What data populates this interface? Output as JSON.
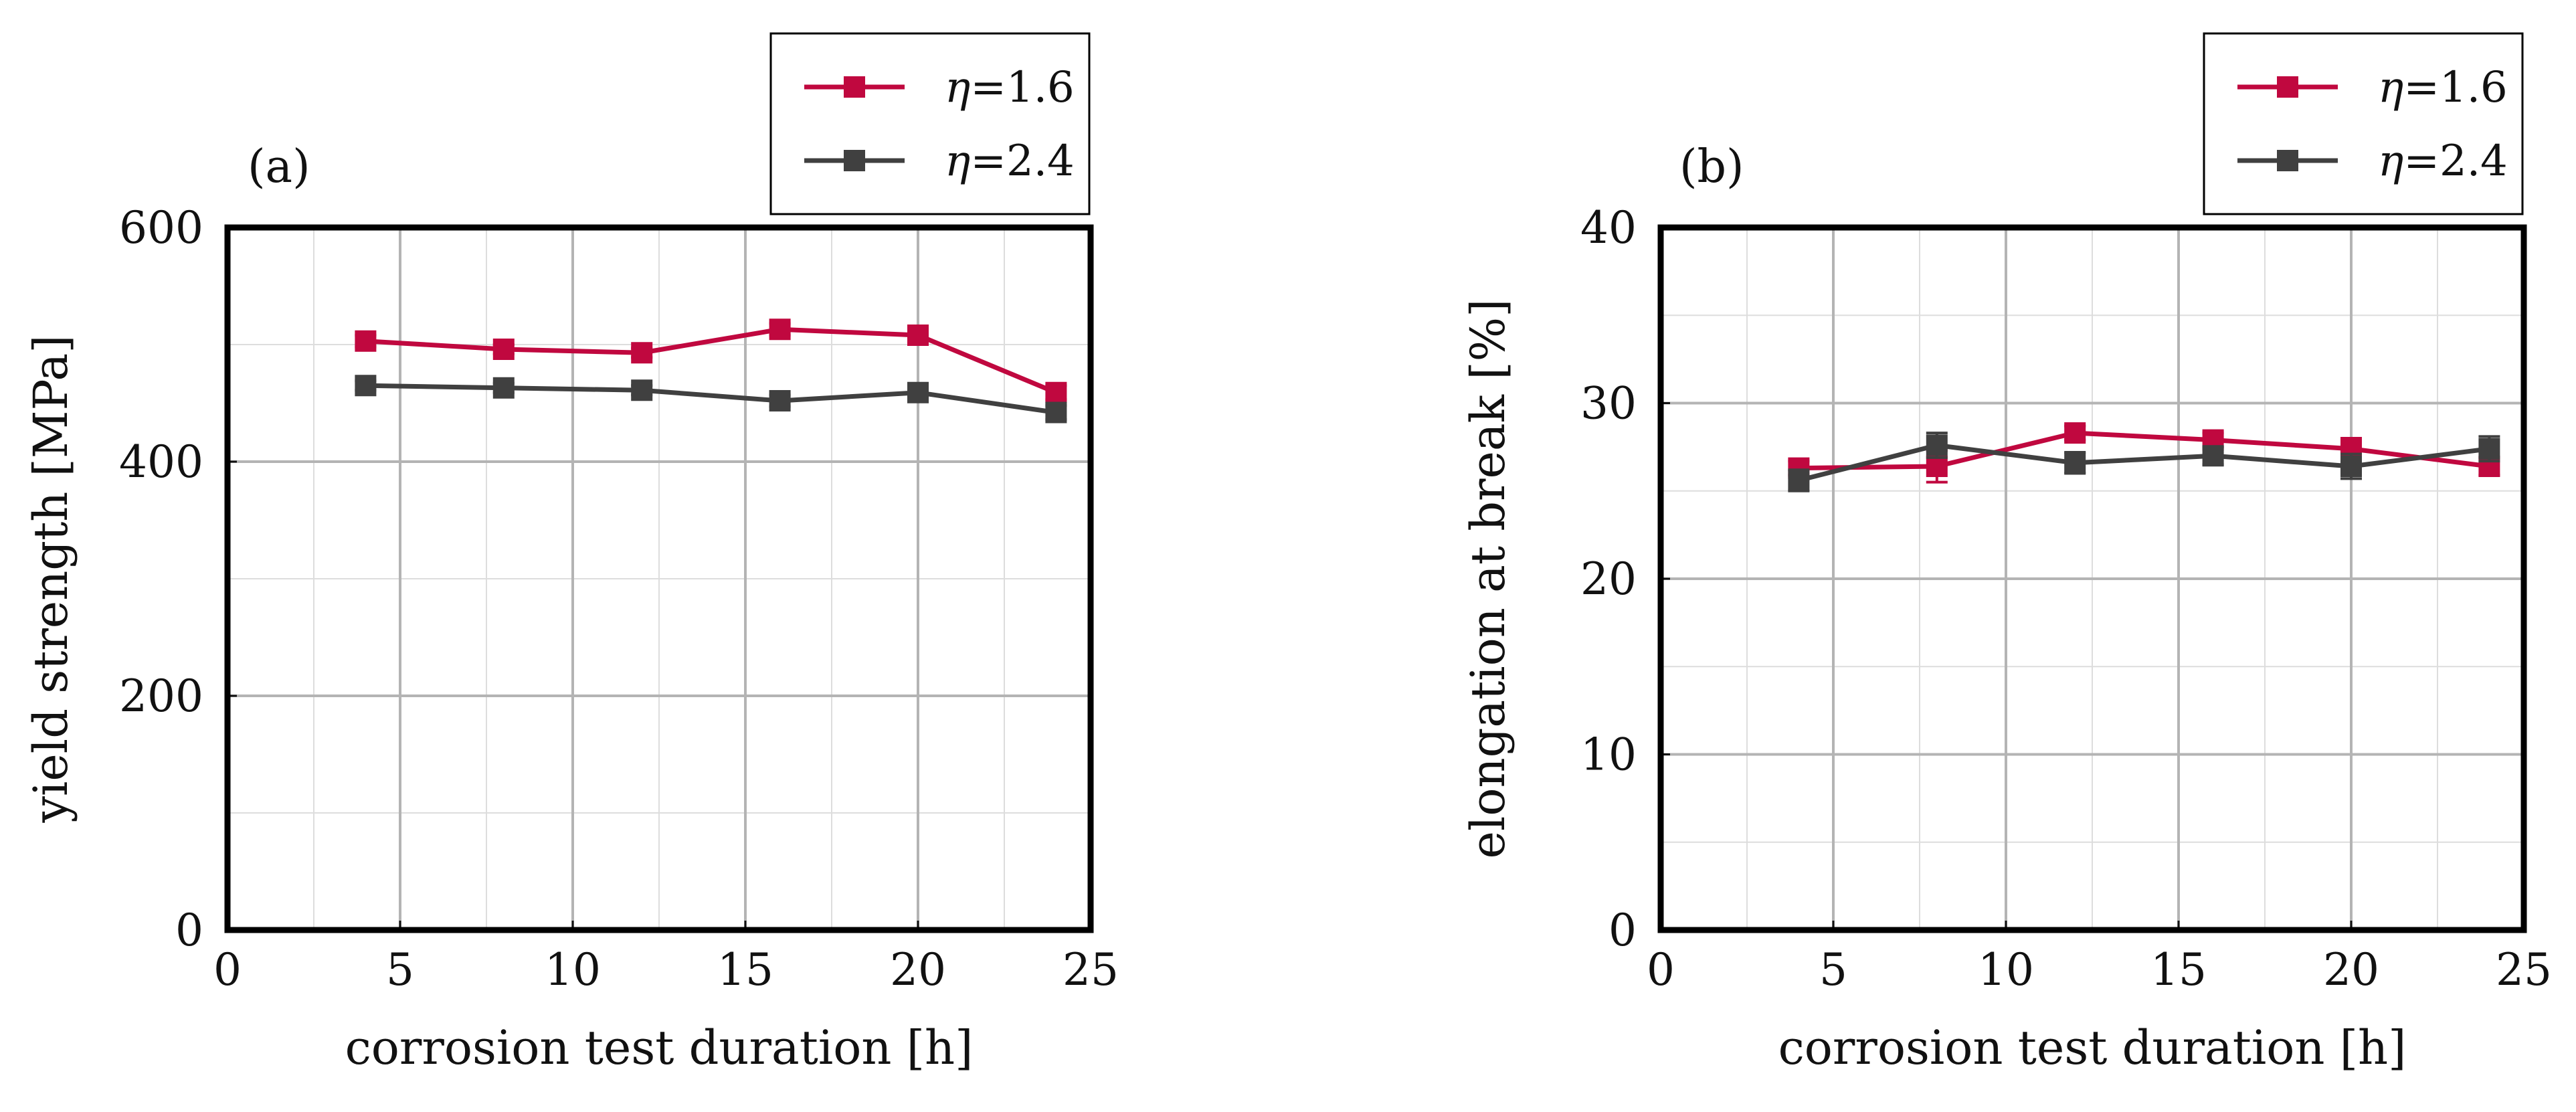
{
  "chart_data": [
    {
      "type": "line",
      "panel_label": "(a)",
      "xlabel": "corrosion test duration [h]",
      "ylabel": "yield strength [MPa]",
      "xlim": [
        0,
        25
      ],
      "ylim": [
        0,
        600
      ],
      "xticks": [
        "0",
        "5",
        "10",
        "15",
        "20",
        "25"
      ],
      "yticks": [
        "0",
        "200",
        "400",
        "600"
      ],
      "grid": true,
      "legend_position": "top-right outside",
      "series": [
        {
          "name": "η=1.6",
          "legend_prefix": "η",
          "legend_value": "=1.6",
          "color": "#c0083f",
          "x": [
            4,
            8,
            12,
            16,
            20,
            24
          ],
          "y": [
            503,
            496,
            493,
            513,
            508,
            459
          ],
          "err": [
            5,
            4,
            4,
            5,
            5,
            6
          ]
        },
        {
          "name": "η=2.4",
          "legend_prefix": "η",
          "legend_value": "=2.4",
          "color": "#404040",
          "x": [
            4,
            8,
            12,
            16,
            20,
            24
          ],
          "y": [
            465,
            463,
            461,
            452,
            459,
            442
          ],
          "err": [
            4,
            4,
            4,
            5,
            4,
            6
          ]
        }
      ]
    },
    {
      "type": "line",
      "panel_label": "(b)",
      "xlabel": "corrosion test duration [h]",
      "ylabel": "elongation at break [%]",
      "xlim": [
        0,
        25
      ],
      "ylim": [
        0,
        40
      ],
      "xticks": [
        "0",
        "5",
        "10",
        "15",
        "20",
        "25"
      ],
      "yticks": [
        "0",
        "10",
        "20",
        "30",
        "40"
      ],
      "grid": true,
      "legend_position": "top-right outside",
      "series": [
        {
          "name": "η=1.6",
          "legend_prefix": "η",
          "legend_value": "=1.6",
          "color": "#c0083f",
          "x": [
            4,
            8,
            12,
            16,
            20,
            24
          ],
          "y": [
            26.3,
            26.4,
            28.3,
            27.9,
            27.4,
            26.4
          ],
          "err": [
            0.4,
            0.9,
            0.4,
            0.4,
            0.6,
            0.5
          ]
        },
        {
          "name": "η=2.4",
          "legend_prefix": "η",
          "legend_value": "=2.4",
          "color": "#404040",
          "x": [
            4,
            8,
            12,
            16,
            20,
            24
          ],
          "y": [
            25.6,
            27.6,
            26.6,
            27.0,
            26.4,
            27.4
          ],
          "err": [
            0.6,
            0.7,
            0.6,
            0.5,
            0.7,
            0.7
          ]
        }
      ]
    }
  ]
}
